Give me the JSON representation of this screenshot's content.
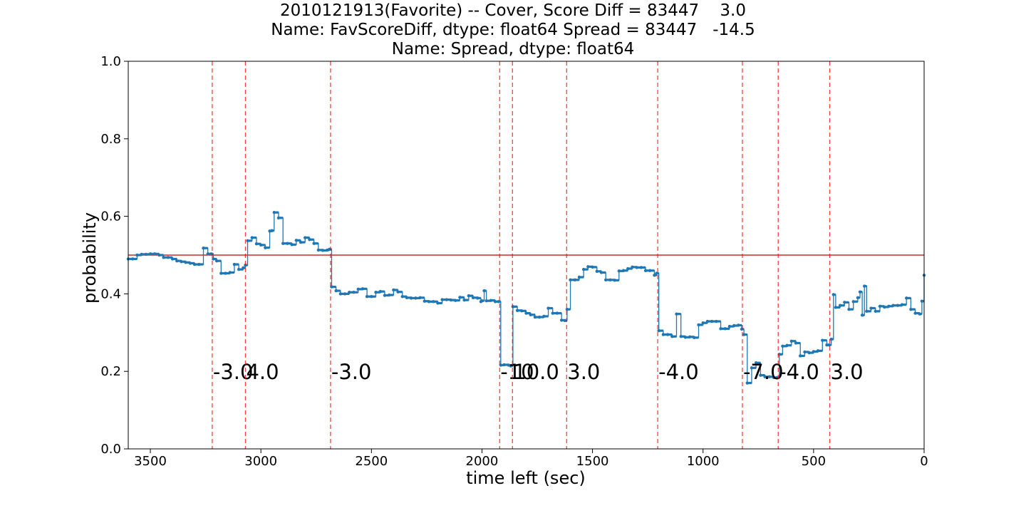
{
  "chart_data": {
    "type": "line",
    "title_lines": [
      "2010121913(Favorite) -- Cover, Score Diff = 83447    3.0",
      "Name: FavScoreDiff, dtype: float64 Spread = 83447   -14.5",
      "Name: Spread, dtype: float64"
    ],
    "xlabel": "time left (sec)",
    "ylabel": "probability",
    "xlim": [
      3600,
      0
    ],
    "ylim": [
      0.0,
      1.0
    ],
    "x_ticks": [
      3500,
      3000,
      2500,
      2000,
      1500,
      1000,
      500,
      0
    ],
    "y_ticks": [
      0.0,
      0.2,
      0.4,
      0.6,
      0.8,
      1.0
    ],
    "y_tick_labels": [
      "0.0",
      "0.2",
      "0.4",
      "0.6",
      "0.8",
      "1.0"
    ],
    "grid": false,
    "colors": {
      "series": "#1f77b4",
      "reference": "#d62728",
      "event": "#ff0000"
    },
    "reference_line": {
      "y": 0.5
    },
    "series": [
      {
        "values_x": [
          3600,
          3580,
          3560,
          3540,
          3520,
          3500,
          3480,
          3460,
          3440,
          3420,
          3400,
          3380,
          3360,
          3340,
          3320,
          3300,
          3280,
          3260,
          3240,
          3225,
          3215,
          3200,
          3180,
          3160,
          3140,
          3120,
          3100,
          3080,
          3070,
          3060,
          3040,
          3020,
          3000,
          2980,
          2960,
          2950,
          2940,
          2920,
          2900,
          2880,
          2860,
          2840,
          2820,
          2800,
          2780,
          2760,
          2740,
          2720,
          2700,
          2690,
          2680,
          2660,
          2640,
          2620,
          2600,
          2580,
          2560,
          2540,
          2520,
          2500,
          2480,
          2460,
          2440,
          2420,
          2400,
          2380,
          2360,
          2340,
          2320,
          2300,
          2280,
          2260,
          2240,
          2220,
          2200,
          2180,
          2160,
          2140,
          2120,
          2100,
          2080,
          2060,
          2040,
          2020,
          2005,
          2000,
          1990,
          1980,
          1960,
          1940,
          1925,
          1915,
          1900,
          1880,
          1870,
          1860,
          1840,
          1820,
          1800,
          1780,
          1760,
          1740,
          1720,
          1700,
          1680,
          1660,
          1640,
          1625,
          1615,
          1600,
          1580,
          1560,
          1540,
          1520,
          1500,
          1480,
          1460,
          1440,
          1420,
          1400,
          1380,
          1360,
          1340,
          1320,
          1300,
          1280,
          1260,
          1240,
          1220,
          1210,
          1200,
          1180,
          1160,
          1140,
          1120,
          1100,
          1080,
          1060,
          1040,
          1020,
          1000,
          980,
          960,
          940,
          920,
          900,
          880,
          860,
          840,
          825,
          815,
          800,
          780,
          760,
          740,
          720,
          700,
          680,
          665,
          655,
          640,
          620,
          600,
          580,
          560,
          540,
          520,
          500,
          480,
          460,
          440,
          430,
          420,
          410,
          400,
          380,
          360,
          340,
          320,
          300,
          290,
          280,
          270,
          260,
          240,
          220,
          200,
          180,
          160,
          140,
          120,
          100,
          80,
          60,
          40,
          20,
          10,
          0
        ],
        "values": [
          0.49,
          0.49,
          0.5,
          0.502,
          0.502,
          0.503,
          0.503,
          0.5,
          0.494,
          0.494,
          0.49,
          0.485,
          0.483,
          0.481,
          0.479,
          0.476,
          0.476,
          0.518,
          0.503,
          0.503,
          0.49,
          0.485,
          0.453,
          0.453,
          0.455,
          0.476,
          0.463,
          0.467,
          0.474,
          0.537,
          0.545,
          0.529,
          0.526,
          0.519,
          0.562,
          0.563,
          0.61,
          0.596,
          0.53,
          0.53,
          0.527,
          0.538,
          0.533,
          0.545,
          0.54,
          0.53,
          0.513,
          0.512,
          0.513,
          0.515,
          0.418,
          0.408,
          0.4,
          0.4,
          0.404,
          0.404,
          0.412,
          0.413,
          0.393,
          0.393,
          0.404,
          0.406,
          0.396,
          0.397,
          0.41,
          0.405,
          0.393,
          0.39,
          0.389,
          0.389,
          0.39,
          0.381,
          0.38,
          0.38,
          0.376,
          0.385,
          0.385,
          0.384,
          0.383,
          0.391,
          0.384,
          0.395,
          0.39,
          0.389,
          0.38,
          0.382,
          0.408,
          0.382,
          0.383,
          0.38,
          0.38,
          0.216,
          0.217,
          0.216,
          0.214,
          0.367,
          0.357,
          0.356,
          0.35,
          0.346,
          0.34,
          0.34,
          0.342,
          0.363,
          0.35,
          0.35,
          0.332,
          0.331,
          0.36,
          0.436,
          0.436,
          0.443,
          0.463,
          0.47,
          0.469,
          0.458,
          0.455,
          0.436,
          0.436,
          0.435,
          0.459,
          0.46,
          0.465,
          0.469,
          0.468,
          0.468,
          0.46,
          0.46,
          0.448,
          0.453,
          0.305,
          0.295,
          0.295,
          0.29,
          0.348,
          0.29,
          0.288,
          0.289,
          0.287,
          0.32,
          0.325,
          0.329,
          0.329,
          0.329,
          0.31,
          0.31,
          0.316,
          0.318,
          0.319,
          0.309,
          0.295,
          0.17,
          0.209,
          0.222,
          0.19,
          0.186,
          0.186,
          0.184,
          0.184,
          0.244,
          0.265,
          0.267,
          0.278,
          0.273,
          0.24,
          0.25,
          0.248,
          0.251,
          0.253,
          0.28,
          0.268,
          0.268,
          0.283,
          0.398,
          0.365,
          0.37,
          0.378,
          0.36,
          0.38,
          0.39,
          0.405,
          0.345,
          0.42,
          0.355,
          0.363,
          0.355,
          0.368,
          0.366,
          0.368,
          0.37,
          0.37,
          0.372,
          0.389,
          0.36,
          0.35,
          0.348,
          0.381,
          0.448
        ]
      }
    ],
    "events": [
      {
        "x": 3220,
        "label": "-3.0"
      },
      {
        "x": 3070,
        "label": "4.0"
      },
      {
        "x": 2685,
        "label": "-3.0"
      },
      {
        "x": 1920,
        "label": "-10"
      },
      {
        "x": 1862,
        "label": "10.0"
      },
      {
        "x": 1617,
        "label": "3.0"
      },
      {
        "x": 1205,
        "label": "-4.0"
      },
      {
        "x": 822,
        "label": "-7.0"
      },
      {
        "x": 660,
        "label": "-4.0"
      },
      {
        "x": 427,
        "label": "3.0"
      }
    ],
    "event_label_y": 0.2
  }
}
